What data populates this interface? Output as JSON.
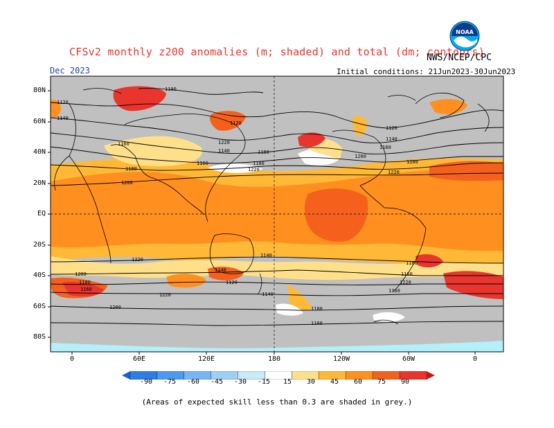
{
  "header": {
    "title": "CFSv2 monthly z200 anomalies (m; shaded) and total (dm; contours)",
    "agency": "NWS/NCEP/CPC",
    "month": "Dec 2023",
    "initial_conditions": "Initial conditions: 21Jun2023-30Jun2023",
    "logo_text": "NOAA"
  },
  "map": {
    "lat_labels": [
      "80N",
      "60N",
      "40N",
      "20N",
      "EQ",
      "20S",
      "40S",
      "60S",
      "80S"
    ],
    "lon_labels": [
      "0",
      "60E",
      "120E",
      "180",
      "120W",
      "60W",
      "0"
    ],
    "contour_labels": [
      "1100",
      "1120",
      "1140",
      "1160",
      "1180",
      "1200",
      "1220",
      "1140",
      "1120",
      "1160",
      "1180",
      "1120",
      "1140",
      "1160",
      "1200",
      "1220",
      "1180",
      "1200",
      "1220",
      "1220",
      "1200",
      "1180",
      "1160",
      "1140",
      "1120",
      "1220",
      "1200",
      "1180",
      "1160",
      "1220",
      "1160",
      "1140",
      "1180",
      "1160",
      "1140",
      "1120",
      "1120"
    ],
    "skill_mask_color": "#c0c0c0",
    "ocean_ice_color": "#b4f0fa"
  },
  "colorbar": {
    "labels": [
      "-90",
      "-75",
      "-60",
      "-45",
      "-30",
      "-15",
      "15",
      "30",
      "45",
      "60",
      "75",
      "90"
    ],
    "colors": [
      "#1c5fd6",
      "#2e7de6",
      "#4a9af0",
      "#76b6f5",
      "#9dd0f7",
      "#c6ecfa",
      "#ffffff",
      "#ffe08a",
      "#ffb937",
      "#ff8f1f",
      "#f5611c",
      "#e8352e",
      "#c51818"
    ]
  },
  "footer": {
    "note": "(Areas of expected skill less than 0.3 are shaded in grey.)"
  }
}
